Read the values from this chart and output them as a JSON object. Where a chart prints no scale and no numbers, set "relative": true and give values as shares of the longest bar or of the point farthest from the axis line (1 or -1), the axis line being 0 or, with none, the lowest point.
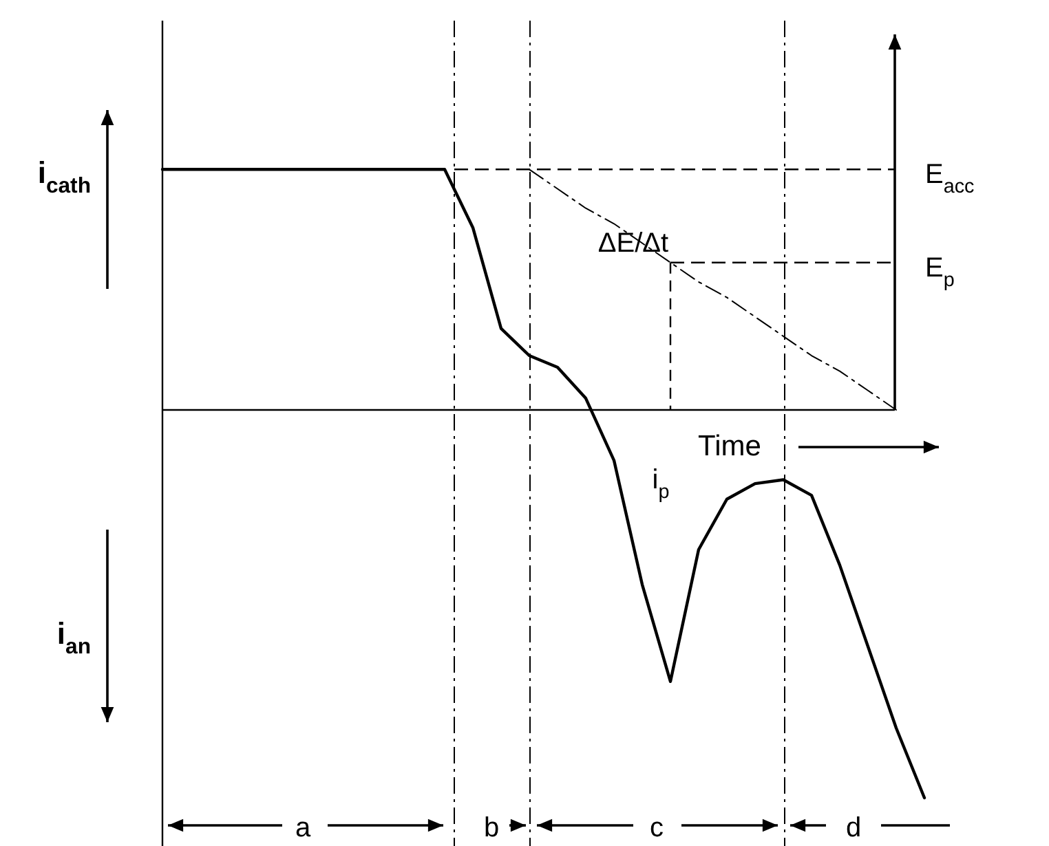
{
  "chart_data": {
    "type": "line",
    "relative": true,
    "xlabel": "Time",
    "categories": [
      null,
      null,
      null,
      null,
      null,
      null,
      null,
      null,
      null,
      null,
      null,
      null,
      null,
      null,
      null,
      null,
      null,
      null,
      null,
      null,
      null,
      null,
      null,
      null,
      null,
      null,
      null,
      null
    ],
    "series": [
      {
        "color": "#000000",
        "line_style": "solid",
        "values": [
          0.62,
          0.62,
          0.62,
          0.62,
          0.62,
          0.62,
          0.62,
          0.62,
          0.62,
          0.62,
          0.62,
          0.47,
          0.21,
          0.14,
          0.11,
          0.03,
          -0.13,
          -0.45,
          -0.7,
          -0.36,
          -0.23,
          -0.19,
          -0.18,
          -0.22,
          -0.4,
          -0.61,
          -0.82,
          -1
        ]
      },
      {
        "color": "#000000",
        "line_style": "dashed",
        "values": [
          null,
          null,
          null,
          null,
          null,
          null,
          null,
          null,
          null,
          null,
          null,
          null,
          null,
          0.62,
          0.57,
          0.52,
          0.48,
          0.43,
          0.38,
          0.33,
          0.29,
          0.24,
          0.19,
          0.14,
          0.1,
          0.05,
          0,
          null
        ]
      }
    ],
    "ref_lines": [
      {
        "axis": "y",
        "value": 0.62,
        "label": "E$_{acc}$",
        "line_style": "dashed"
      },
      {
        "axis": "y",
        "value": 0.38,
        "label": "E$_{p}$",
        "line_style": "dashed"
      }
    ],
    "annotations": [
      "i$_{cath}$",
      "i$_{an}$",
      "ΔE/Δt",
      "i$_{p}$",
      "a",
      "b",
      "c",
      "d"
    ]
  }
}
